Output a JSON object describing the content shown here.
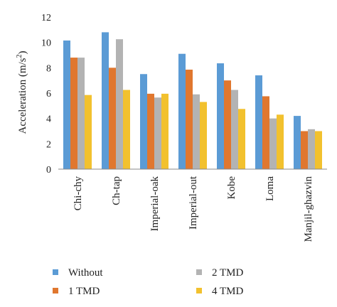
{
  "chart_data": {
    "type": "bar",
    "title": "",
    "xlabel": "",
    "ylabel": "Acceleration (m/s",
    "ylabel_sup": "2",
    "ylabel_close": ")",
    "ylim": [
      0,
      12
    ],
    "yticks": [
      0,
      2,
      4,
      6,
      8,
      10,
      12
    ],
    "grid": false,
    "legend_position": "bottom",
    "categories": [
      "Chi-chy",
      "Ch-tap",
      "Imperial-oak",
      "Imperial-out",
      "Kobe",
      "Loma",
      "Manjil-ghazvin"
    ],
    "series": [
      {
        "name": "Without",
        "color": "#5b9bd5",
        "values": [
          10.15,
          10.8,
          7.5,
          9.1,
          8.35,
          7.4,
          4.2
        ]
      },
      {
        "name": "1 TMD",
        "color": "#e0772f",
        "values": [
          8.8,
          8.0,
          5.95,
          7.85,
          7.0,
          5.75,
          3.0
        ]
      },
      {
        "name": "2 TMD",
        "color": "#b3b3b3",
        "values": [
          8.8,
          10.25,
          5.65,
          5.9,
          6.25,
          4.0,
          3.15
        ]
      },
      {
        "name": "4 TMD",
        "color": "#f2c12e",
        "values": [
          5.85,
          6.25,
          5.95,
          5.3,
          4.75,
          4.3,
          3.0
        ]
      }
    ]
  }
}
